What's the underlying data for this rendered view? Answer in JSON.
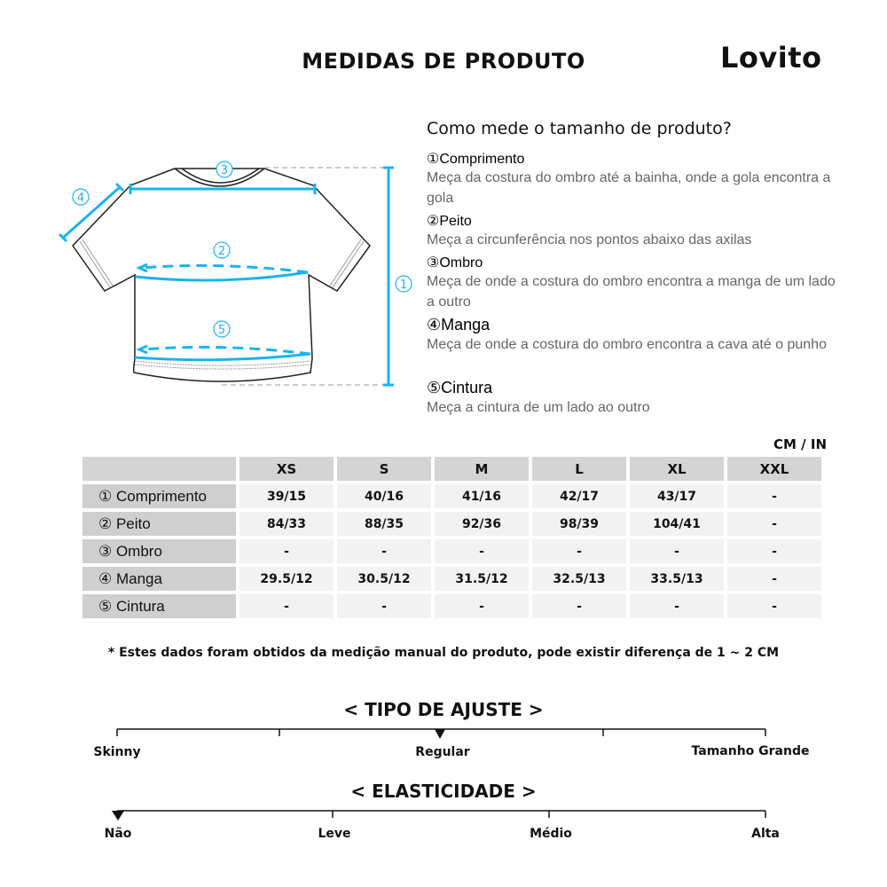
{
  "header": {
    "title": "MEDIDAS DE PRODUTO",
    "brand": "Lovito"
  },
  "guide": {
    "question": "Como mede o tamanho de produto?",
    "items": [
      {
        "name": "①Comprimento",
        "text": "Meça da costura do ombro até a bainha, onde a gola encontra a gola"
      },
      {
        "name": "②Peito",
        "text": "Meça a circunferência nos pontos abaixo das axilas"
      },
      {
        "name": "③Ombro",
        "text": "Meça de onde a costura do ombro encontra a manga de um lado a outro"
      },
      {
        "name": "④Manga",
        "text": "Meça de onde a costura do ombro encontra a cava até o punho"
      },
      {
        "name": "⑤Cintura",
        "text": "Meça a cintura de um lado ao outro"
      }
    ],
    "diagram_markers": [
      "①",
      "②",
      "③",
      "④",
      "⑤"
    ],
    "accent_color": "#1ab4ef"
  },
  "size_table": {
    "unit": "CM / IN",
    "columns": [
      "XS",
      "S",
      "M",
      "L",
      "XL",
      "XXL"
    ],
    "rows": [
      {
        "label": "① Comprimento",
        "values": [
          "39/15",
          "40/16",
          "41/16",
          "42/17",
          "43/17",
          "-"
        ]
      },
      {
        "label": "② Peito",
        "values": [
          "84/33",
          "88/35",
          "92/36",
          "98/39",
          "104/41",
          "-"
        ]
      },
      {
        "label": "③ Ombro",
        "values": [
          "-",
          "-",
          "-",
          "-",
          "-",
          "-"
        ]
      },
      {
        "label": "④ Manga",
        "values": [
          "29.5/12",
          "30.5/12",
          "31.5/12",
          "32.5/13",
          "33.5/13",
          "-"
        ]
      },
      {
        "label": "⑤ Cintura",
        "values": [
          "-",
          "-",
          "-",
          "-",
          "-",
          "-"
        ]
      }
    ]
  },
  "note": "* Estes dados foram obtidos da medição manual do produto, pode existir diferença de 1 ~ 2 CM",
  "fit": {
    "title": "< TIPO DE AJUSTE >",
    "labels": [
      "Skinny",
      "Regular",
      "Tamanho Grande"
    ],
    "selected": "Regular"
  },
  "elasticity": {
    "title": "< ELASTICIDADE >",
    "labels": [
      "Não",
      "Leve",
      "Médio",
      "Alta"
    ],
    "selected": "Não"
  }
}
